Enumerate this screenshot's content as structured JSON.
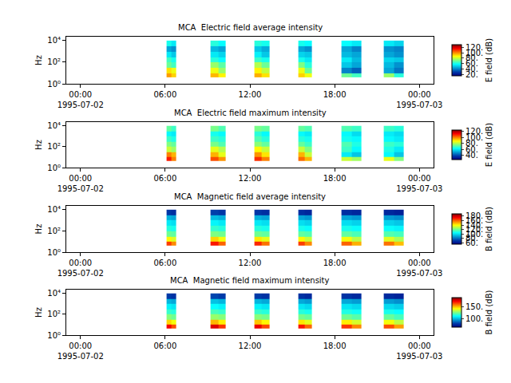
{
  "chart_data": [
    {
      "type": "heatmap",
      "title": "MCA  Electric field average intensity",
      "ylabel": "Hz",
      "x": [
        "1995-07-02 06:06",
        "1995-07-02 06:27",
        "1995-07-02 06:48",
        "1995-07-02 09:12",
        "1995-07-02 09:45",
        "1995-07-02 10:18",
        "1995-07-02 12:18",
        "1995-07-02 12:51",
        "1995-07-02 13:24",
        "1995-07-02 15:24",
        "1995-07-02 15:54",
        "1995-07-02 16:24",
        "1995-07-02 18:30",
        "1995-07-02 19:12",
        "1995-07-02 19:54",
        "1995-07-02 21:30",
        "1995-07-02 22:12",
        "1995-07-02 22:54"
      ],
      "y": [
        4,
        10,
        30,
        100,
        300,
        1000,
        3000,
        10000
      ],
      "z": [
        [
          98,
          92,
          null,
          95,
          88,
          null,
          96,
          90,
          null,
          92,
          85,
          null,
          70,
          65,
          null,
          75,
          62
        ],
        [
          90,
          85,
          null,
          85,
          75,
          null,
          88,
          80,
          null,
          85,
          70,
          null,
          40,
          35,
          null,
          45,
          38
        ],
        [
          70,
          65,
          null,
          75,
          68,
          null,
          78,
          70,
          null,
          72,
          62,
          null,
          50,
          45,
          null,
          48,
          42
        ],
        [
          65,
          60,
          null,
          62,
          58,
          null,
          64,
          60,
          null,
          60,
          55,
          null,
          55,
          48,
          null,
          52,
          50
        ],
        [
          55,
          50,
          null,
          55,
          52,
          null,
          56,
          50,
          null,
          52,
          50,
          null,
          48,
          45,
          null,
          45,
          42
        ],
        [
          45,
          42,
          null,
          48,
          45,
          null,
          50,
          46,
          null,
          45,
          42,
          null,
          45,
          40,
          null,
          42,
          40
        ],
        [
          60,
          55,
          null,
          62,
          58,
          null,
          62,
          60,
          null,
          60,
          58,
          null,
          58,
          55,
          null,
          55,
          52
        ]
      ],
      "xlim": [
        "1995-07-01 23:00",
        "1995-07-03 01:00"
      ],
      "xticks": [
        {
          "value": "1995-07-02 00:00",
          "label": "00:00\n1995-07-02"
        },
        {
          "value": "1995-07-02 06:00",
          "label": "06:00"
        },
        {
          "value": "1995-07-02 12:00",
          "label": "12:00"
        },
        {
          "value": "1995-07-02 18:00",
          "label": "18:00"
        },
        {
          "value": "1995-07-03 00:00",
          "label": "00:00\n1995-07-03"
        }
      ],
      "ylim": [
        1,
        23000
      ],
      "log": "y",
      "yticks": [
        {
          "value": 1,
          "label": "10⁰"
        },
        {
          "value": 100,
          "label": "10²"
        },
        {
          "value": 10000,
          "label": "10⁴"
        }
      ],
      "colorbar": {
        "title": "E field (dB)",
        "range": [
          15,
          130
        ],
        "ticks": [
          {
            "value": 20,
            "label": "20."
          },
          {
            "value": 40,
            "label": "40."
          },
          {
            "value": 60,
            "label": "60."
          },
          {
            "value": 80,
            "label": "80."
          },
          {
            "value": 100,
            "label": "100."
          },
          {
            "value": 120,
            "label": "120."
          }
        ]
      }
    },
    {
      "type": "heatmap",
      "title": "MCA  Electric field maximum intensity",
      "ylabel": "Hz",
      "x": [
        "1995-07-02 06:06",
        "1995-07-02 06:27",
        "1995-07-02 06:48",
        "1995-07-02 09:12",
        "1995-07-02 09:45",
        "1995-07-02 10:18",
        "1995-07-02 12:18",
        "1995-07-02 12:51",
        "1995-07-02 13:24",
        "1995-07-02 15:24",
        "1995-07-02 15:54",
        "1995-07-02 16:24",
        "1995-07-02 18:30",
        "1995-07-02 19:12",
        "1995-07-02 19:54",
        "1995-07-02 21:30",
        "1995-07-02 22:12",
        "1995-07-02 22:54"
      ],
      "y": [
        4,
        10,
        30,
        100,
        300,
        1000,
        3000,
        10000
      ],
      "z": [
        [
          110,
          100,
          null,
          105,
          98,
          null,
          108,
          100,
          null,
          102,
          95,
          null,
          82,
          78,
          null,
          85,
          75
        ],
        [
          100,
          95,
          null,
          95,
          85,
          null,
          98,
          90,
          null,
          95,
          82,
          null,
          60,
          55,
          null,
          62,
          55
        ],
        [
          82,
          78,
          null,
          85,
          80,
          null,
          88,
          82,
          null,
          82,
          75,
          null,
          68,
          62,
          null,
          65,
          60
        ],
        [
          75,
          72,
          null,
          74,
          70,
          null,
          76,
          72,
          null,
          72,
          68,
          null,
          70,
          65,
          null,
          68,
          66
        ],
        [
          68,
          65,
          null,
          68,
          66,
          null,
          70,
          66,
          null,
          66,
          64,
          null,
          64,
          62,
          null,
          62,
          60
        ],
        [
          62,
          60,
          null,
          64,
          62,
          null,
          66,
          62,
          null,
          62,
          60,
          null,
          62,
          58,
          null,
          60,
          58
        ],
        [
          72,
          68,
          null,
          74,
          70,
          null,
          74,
          72,
          null,
          72,
          70,
          null,
          70,
          68,
          null,
          68,
          66
        ]
      ],
      "xlim": [
        "1995-07-01 23:00",
        "1995-07-03 01:00"
      ],
      "xticks": [
        {
          "value": "1995-07-02 00:00",
          "label": "00:00\n1995-07-02"
        },
        {
          "value": "1995-07-02 06:00",
          "label": "06:00"
        },
        {
          "value": "1995-07-02 12:00",
          "label": "12:00"
        },
        {
          "value": "1995-07-02 18:00",
          "label": "18:00"
        },
        {
          "value": "1995-07-03 00:00",
          "label": "00:00\n1995-07-03"
        }
      ],
      "ylim": [
        1,
        23000
      ],
      "log": "y",
      "yticks": [
        {
          "value": 1,
          "label": "10⁰"
        },
        {
          "value": 100,
          "label": "10²"
        },
        {
          "value": 10000,
          "label": "10⁴"
        }
      ],
      "colorbar": {
        "title": "E field (dB)",
        "range": [
          25,
          125
        ],
        "ticks": [
          {
            "value": 40,
            "label": "40."
          },
          {
            "value": 60,
            "label": "60."
          },
          {
            "value": 80,
            "label": "80."
          },
          {
            "value": 100,
            "label": "100."
          },
          {
            "value": 120,
            "label": "120."
          }
        ]
      }
    },
    {
      "type": "heatmap",
      "title": "MCA  Magnetic field average intensity",
      "ylabel": "Hz",
      "x": [
        "1995-07-02 06:06",
        "1995-07-02 06:27",
        "1995-07-02 06:48",
        "1995-07-02 09:12",
        "1995-07-02 09:45",
        "1995-07-02 10:18",
        "1995-07-02 12:18",
        "1995-07-02 12:51",
        "1995-07-02 13:24",
        "1995-07-02 15:24",
        "1995-07-02 15:54",
        "1995-07-02 16:24",
        "1995-07-02 18:30",
        "1995-07-02 19:12",
        "1995-07-02 19:54",
        "1995-07-02 21:30",
        "1995-07-02 22:12",
        "1995-07-02 22:54"
      ],
      "y": [
        4,
        10,
        30,
        100,
        300,
        1000,
        3000,
        10000
      ],
      "z": [
        [
          165,
          155,
          null,
          170,
          160,
          null,
          168,
          158,
          null,
          165,
          155,
          null,
          160,
          150,
          null,
          158,
          148
        ],
        [
          140,
          135,
          null,
          145,
          138,
          null,
          142,
          136,
          null,
          140,
          132,
          null,
          138,
          130,
          null,
          135,
          128
        ],
        [
          120,
          118,
          null,
          122,
          120,
          null,
          120,
          118,
          null,
          118,
          116,
          null,
          118,
          115,
          null,
          116,
          114
        ],
        [
          110,
          108,
          null,
          112,
          110,
          null,
          110,
          108,
          null,
          108,
          106,
          null,
          108,
          106,
          null,
          106,
          104
        ],
        [
          102,
          100,
          null,
          104,
          102,
          null,
          102,
          100,
          null,
          100,
          98,
          null,
          100,
          98,
          null,
          98,
          96
        ],
        [
          92,
          90,
          null,
          94,
          92,
          null,
          92,
          90,
          null,
          90,
          88,
          null,
          90,
          88,
          null,
          88,
          86
        ],
        [
          70,
          68,
          null,
          72,
          70,
          null,
          70,
          68,
          null,
          68,
          66,
          null,
          68,
          66,
          null,
          66,
          64
        ]
      ],
      "xlim": [
        "1995-07-01 23:00",
        "1995-07-03 01:00"
      ],
      "xticks": [
        {
          "value": "1995-07-02 00:00",
          "label": "00:00\n1995-07-02"
        },
        {
          "value": "1995-07-02 06:00",
          "label": "06:00"
        },
        {
          "value": "1995-07-02 12:00",
          "label": "12:00"
        },
        {
          "value": "1995-07-02 18:00",
          "label": "18:00"
        },
        {
          "value": "1995-07-03 00:00",
          "label": "00:00\n1995-07-03"
        }
      ],
      "ylim": [
        1,
        23000
      ],
      "log": "y",
      "yticks": [
        {
          "value": 1,
          "label": "10⁰"
        },
        {
          "value": 100,
          "label": "10²"
        },
        {
          "value": 10000,
          "label": "10⁴"
        }
      ],
      "colorbar": {
        "title": "B field (dB)",
        "range": [
          55,
          190
        ],
        "ticks": [
          {
            "value": 60,
            "label": "60."
          },
          {
            "value": 80,
            "label": "80."
          },
          {
            "value": 100,
            "label": "100."
          },
          {
            "value": 120,
            "label": "120."
          },
          {
            "value": 140,
            "label": "140."
          },
          {
            "value": 160,
            "label": "160."
          },
          {
            "value": 180,
            "label": "180."
          }
        ]
      }
    },
    {
      "type": "heatmap",
      "title": "MCA  Magnetic field maximum intensity",
      "ylabel": "Hz",
      "x": [
        "1995-07-02 06:06",
        "1995-07-02 06:27",
        "1995-07-02 06:48",
        "1995-07-02 09:12",
        "1995-07-02 09:45",
        "1995-07-02 10:18",
        "1995-07-02 12:18",
        "1995-07-02 12:51",
        "1995-07-02 13:24",
        "1995-07-02 15:24",
        "1995-07-02 15:54",
        "1995-07-02 16:24",
        "1995-07-02 18:30",
        "1995-07-02 19:12",
        "1995-07-02 19:54",
        "1995-07-02 21:30",
        "1995-07-02 22:12",
        "1995-07-02 22:54"
      ],
      "y": [
        4,
        10,
        30,
        100,
        300,
        1000,
        3000,
        10000
      ],
      "z": [
        [
          175,
          165,
          null,
          178,
          168,
          null,
          176,
          166,
          null,
          172,
          162,
          null,
          168,
          158,
          null,
          165,
          155
        ],
        [
          148,
          142,
          null,
          152,
          145,
          null,
          150,
          144,
          null,
          146,
          140,
          null,
          145,
          138,
          null,
          142,
          135
        ],
        [
          128,
          125,
          null,
          130,
          128,
          null,
          128,
          126,
          null,
          126,
          124,
          null,
          125,
          122,
          null,
          124,
          120
        ],
        [
          118,
          116,
          null,
          120,
          118,
          null,
          118,
          116,
          null,
          116,
          114,
          null,
          115,
          113,
          null,
          114,
          112
        ],
        [
          110,
          108,
          null,
          112,
          110,
          null,
          110,
          108,
          null,
          108,
          106,
          null,
          108,
          106,
          null,
          106,
          104
        ],
        [
          100,
          98,
          null,
          102,
          100,
          null,
          100,
          98,
          null,
          98,
          96,
          null,
          98,
          96,
          null,
          96,
          94
        ],
        [
          80,
          78,
          null,
          82,
          80,
          null,
          80,
          78,
          null,
          78,
          76,
          null,
          78,
          76,
          null,
          76,
          74
        ]
      ],
      "xlim": [
        "1995-07-01 23:00",
        "1995-07-03 01:00"
      ],
      "xticks": [
        {
          "value": "1995-07-02 00:00",
          "label": "00:00\n1995-07-02"
        },
        {
          "value": "1995-07-02 06:00",
          "label": "06:00"
        },
        {
          "value": "1995-07-02 12:00",
          "label": "12:00"
        },
        {
          "value": "1995-07-02 18:00",
          "label": "18:00"
        },
        {
          "value": "1995-07-03 00:00",
          "label": "00:00\n1995-07-03"
        }
      ],
      "ylim": [
        1,
        23000
      ],
      "log": "y",
      "yticks": [
        {
          "value": 1,
          "label": "10⁰"
        },
        {
          "value": 100,
          "label": "10²"
        },
        {
          "value": 10000,
          "label": "10⁴"
        }
      ],
      "colorbar": {
        "title": "B field (dB)",
        "range": [
          65,
          190
        ],
        "ticks": [
          {
            "value": 100,
            "label": "100."
          },
          {
            "value": 150,
            "label": "150."
          }
        ]
      }
    }
  ]
}
